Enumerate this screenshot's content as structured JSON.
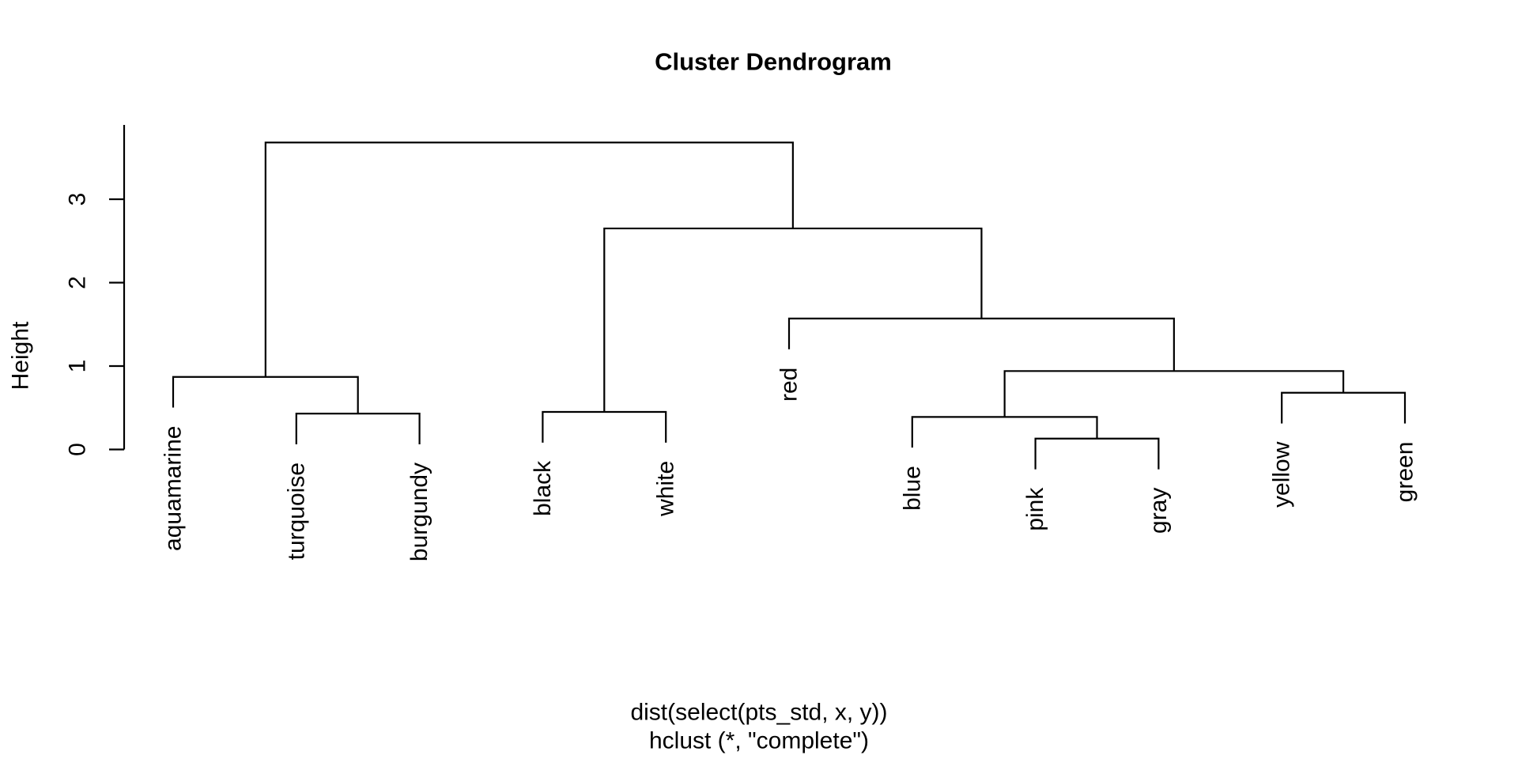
{
  "chart_data": {
    "type": "dendrogram",
    "title": "Cluster Dendrogram",
    "ylabel": "Height",
    "xlabel_line1": "dist(select(pts_std, x, y))",
    "xlabel_line2": "hclust (*, \"complete\")",
    "clustering_method": "complete",
    "y_ticks": [
      0,
      1,
      2,
      3
    ],
    "ylim": [
      0,
      3.68
    ],
    "hang": 0.1,
    "grid": false,
    "leaf_order": [
      "aquamarine",
      "turquoise",
      "burgundy",
      "black",
      "white",
      "red",
      "blue",
      "pink",
      "gray",
      "yellow",
      "green"
    ],
    "root": {
      "height": 3.68,
      "children": [
        {
          "height": 0.87,
          "children": [
            {
              "leaf": "aquamarine"
            },
            {
              "height": 0.43,
              "children": [
                {
                  "leaf": "turquoise"
                },
                {
                  "leaf": "burgundy"
                }
              ]
            }
          ]
        },
        {
          "height": 2.65,
          "children": [
            {
              "height": 0.45,
              "children": [
                {
                  "leaf": "black"
                },
                {
                  "leaf": "white"
                }
              ]
            },
            {
              "height": 1.57,
              "children": [
                {
                  "leaf": "red"
                },
                {
                  "height": 0.94,
                  "children": [
                    {
                      "height": 0.39,
                      "children": [
                        {
                          "leaf": "blue"
                        },
                        {
                          "height": 0.13,
                          "children": [
                            {
                              "leaf": "pink"
                            },
                            {
                              "leaf": "gray"
                            }
                          ]
                        }
                      ]
                    },
                    {
                      "height": 0.68,
                      "children": [
                        {
                          "leaf": "yellow"
                        },
                        {
                          "leaf": "green"
                        }
                      ]
                    }
                  ]
                }
              ]
            }
          ]
        }
      ]
    },
    "colors": {
      "line": "#000000",
      "text": "#000000",
      "background": "#ffffff"
    }
  }
}
